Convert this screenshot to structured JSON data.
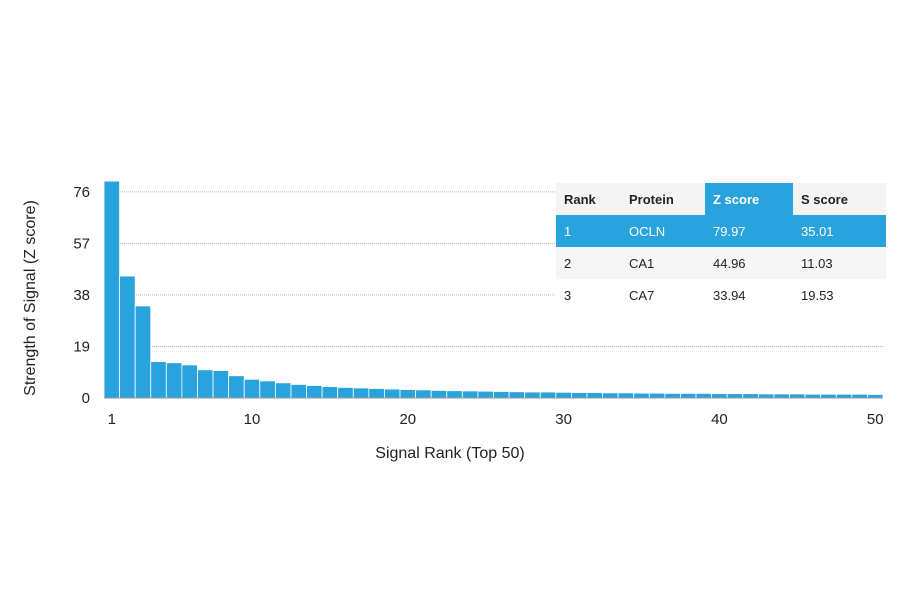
{
  "chart_data": {
    "type": "bar",
    "xlabel": "Signal Rank (Top 50)",
    "ylabel": "Strength of Signal (Z score)",
    "ylim": [
      0,
      80
    ],
    "xlim": [
      1,
      50
    ],
    "yticks": [
      0,
      19,
      38,
      57,
      76
    ],
    "xticks": [
      1,
      10,
      20,
      30,
      40,
      50
    ],
    "grid": true,
    "bar_color": "#29a3dd",
    "x": [
      1,
      2,
      3,
      4,
      5,
      6,
      7,
      8,
      9,
      10,
      11,
      12,
      13,
      14,
      15,
      16,
      17,
      18,
      19,
      20,
      21,
      22,
      23,
      24,
      25,
      26,
      27,
      28,
      29,
      30,
      31,
      32,
      33,
      34,
      35,
      36,
      37,
      38,
      39,
      40,
      41,
      42,
      43,
      44,
      45,
      46,
      47,
      48,
      49,
      50
    ],
    "values": [
      79.97,
      44.96,
      33.94,
      13.4,
      13.0,
      12.2,
      10.4,
      10.1,
      8.2,
      6.9,
      6.3,
      5.6,
      5.0,
      4.6,
      4.2,
      3.9,
      3.7,
      3.5,
      3.3,
      3.1,
      3.0,
      2.8,
      2.7,
      2.6,
      2.5,
      2.4,
      2.3,
      2.2,
      2.2,
      2.1,
      2.0,
      2.0,
      1.9,
      1.9,
      1.8,
      1.8,
      1.7,
      1.7,
      1.7,
      1.6,
      1.6,
      1.6,
      1.5,
      1.5,
      1.5,
      1.4,
      1.4,
      1.4,
      1.4,
      1.3
    ]
  },
  "table": {
    "headers": [
      "Rank",
      "Protein",
      "Z score",
      "S score"
    ],
    "highlight_color": "#29a3dd",
    "rows": [
      [
        "1",
        "OCLN",
        "79.97",
        "35.01"
      ],
      [
        "2",
        "CA1",
        "44.96",
        "11.03"
      ],
      [
        "3",
        "CA7",
        "33.94",
        "19.53"
      ]
    ]
  }
}
